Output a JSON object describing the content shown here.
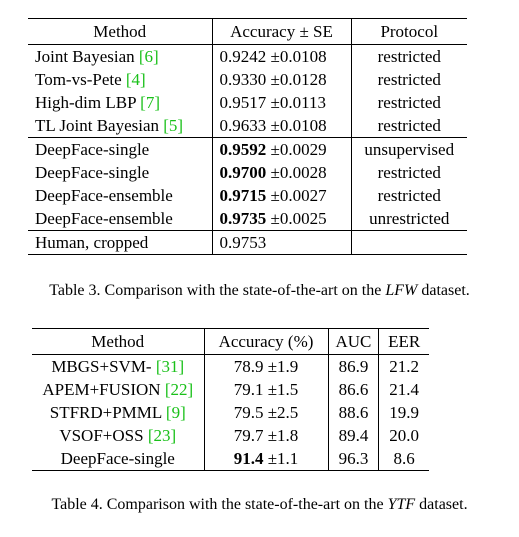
{
  "table3": {
    "headers": {
      "method": "Method",
      "accuracy": "Accuracy ± SE",
      "protocol": "Protocol"
    },
    "rows": [
      {
        "method": "Joint Bayesian",
        "ref": "[6]",
        "acc": "0.9242",
        "se": "±0.0108",
        "protocol": "restricted"
      },
      {
        "method": "Tom-vs-Pete",
        "ref": "[4]",
        "acc": "0.9330",
        "se": "±0.0128",
        "protocol": "restricted"
      },
      {
        "method": "High-dim LBP",
        "ref": "[7]",
        "acc": "0.9517",
        "se": "±0.0113",
        "protocol": "restricted"
      },
      {
        "method": "TL Joint Bayesian",
        "ref": "[5]",
        "acc": "0.9633",
        "se": "±0.0108",
        "protocol": "restricted"
      },
      {
        "method": "DeepFace-single",
        "acc": "0.9592",
        "se": "±0.0029",
        "protocol": "unsupervised"
      },
      {
        "method": "DeepFace-single",
        "acc": "0.9700",
        "se": "±0.0028",
        "protocol": "restricted"
      },
      {
        "method": "DeepFace-ensemble",
        "acc": "0.9715",
        "se": "±0.0027",
        "protocol": "restricted"
      },
      {
        "method": "DeepFace-ensemble",
        "acc": "0.9735",
        "se": "±0.0025",
        "protocol": "unrestricted"
      },
      {
        "method": "Human, cropped",
        "acc": "0.9753"
      }
    ],
    "caption": {
      "prefix": "Table 3. Comparison with the state-of-the-art on the",
      "dataset": "LFW",
      "suffix": "dataset."
    }
  },
  "table4": {
    "headers": {
      "method": "Method",
      "accuracy": "Accuracy (%)",
      "auc": "AUC",
      "eer": "EER"
    },
    "rows": [
      {
        "method": "MBGS+SVM-",
        "ref": "[31]",
        "acc": "78.9",
        "se": "±1.9",
        "auc": "86.9",
        "eer": "21.2"
      },
      {
        "method": "APEM+FUSION",
        "ref": "[22]",
        "acc": "79.1",
        "se": "±1.5",
        "auc": "86.6",
        "eer": "21.4"
      },
      {
        "method": "STFRD+PMML",
        "ref": "[9]",
        "acc": "79.5",
        "se": "±2.5",
        "auc": "88.6",
        "eer": "19.9"
      },
      {
        "method": "VSOF+OSS",
        "ref": "[23]",
        "acc": "79.7",
        "se": "±1.8",
        "auc": "89.4",
        "eer": "20.0"
      },
      {
        "method": "DeepFace-single",
        "acc": "91.4",
        "se": "±1.1",
        "auc": "96.3",
        "eer": "8.6"
      }
    ],
    "caption": {
      "prefix": "Table 4. Comparison with the state-of-the-art on the",
      "dataset": "YTF",
      "suffix": "dataset."
    }
  }
}
